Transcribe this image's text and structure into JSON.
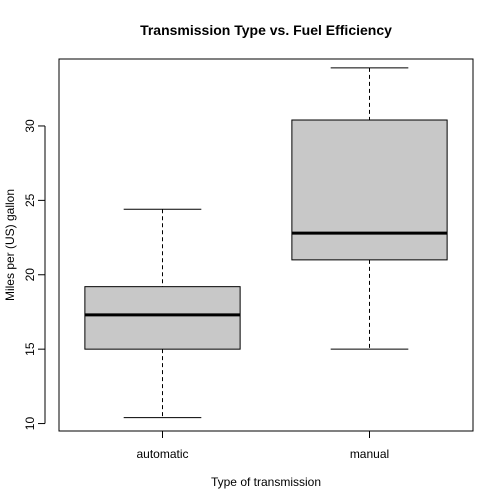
{
  "chart_data": {
    "type": "box",
    "title": "Transmission Type vs. Fuel Efficiency",
    "xlabel": "Type of transmission",
    "ylabel": "Miles per (US) gallon",
    "ylim": [
      9.5,
      34.5
    ],
    "yticks": [
      10,
      15,
      20,
      25,
      30
    ],
    "ytick_labels": [
      "10",
      "15",
      "20",
      "25",
      "30"
    ],
    "categories": [
      "automatic",
      "manual"
    ],
    "boxes": [
      {
        "category": "automatic",
        "whisker_low": 10.4,
        "q1": 15.0,
        "median": 17.3,
        "q3": 19.2,
        "whisker_high": 24.4
      },
      {
        "category": "manual",
        "whisker_low": 15.0,
        "q1": 21.0,
        "median": 22.8,
        "q3": 30.4,
        "whisker_high": 33.9
      }
    ],
    "box_fill": "#c8c8c8",
    "grid": false
  }
}
